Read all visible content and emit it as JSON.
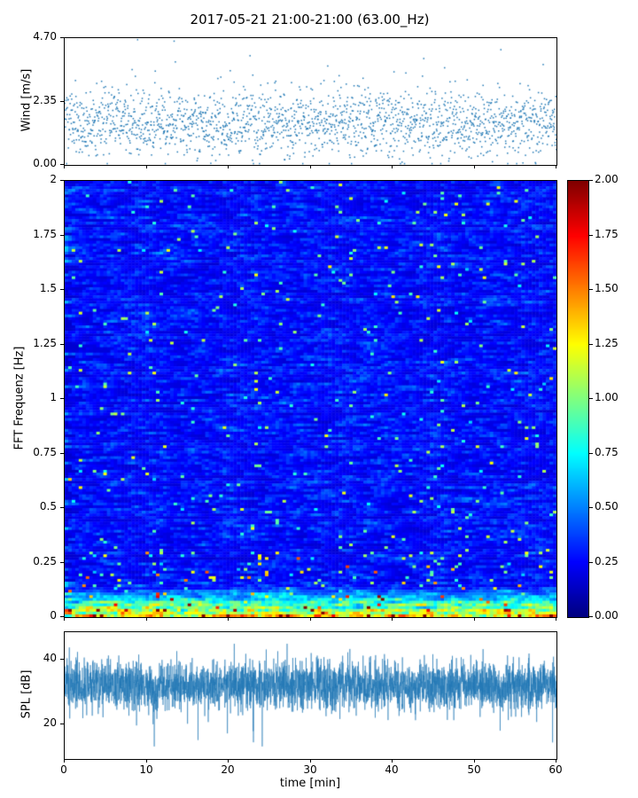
{
  "title": "2017-05-21 21:00-21:00 (63.00_Hz)",
  "xlabel": "time [min]",
  "xticks": {
    "values": [
      0,
      10,
      20,
      30,
      40,
      50,
      60
    ],
    "labels": [
      "0",
      "10",
      "20",
      "30",
      "40",
      "50",
      "60"
    ]
  },
  "accent_color": "#1f77b4",
  "chart_data": [
    {
      "type": "scatter",
      "name": "wind-speed",
      "ylabel": "Wind [m/s]",
      "xlim": [
        0,
        60
      ],
      "ylim": [
        0,
        4.7
      ],
      "yticks": {
        "values": [
          0,
          2.35,
          4.7
        ],
        "labels": [
          "0.00",
          "2.35",
          "4.70"
        ]
      },
      "marker_color": "#1f77b4",
      "data_summary": {
        "points": 1900,
        "y_mean": 1.55,
        "y_std": 0.62,
        "y_min": 0.05,
        "y_max": 4.7,
        "note": "dense noisy wind-speed scatter, mostly 0.5-2.8 m/s with sparse spikes up to 4.7"
      }
    },
    {
      "type": "heatmap",
      "name": "fft-spectrogram",
      "ylabel": "FFT Frequenz [Hz]",
      "xlim": [
        0,
        60
      ],
      "ylim": [
        0,
        2
      ],
      "yticks": {
        "values": [
          0,
          0.25,
          0.5,
          0.75,
          1,
          1.25,
          1.5,
          1.75,
          2
        ],
        "labels": [
          "0",
          "0.25",
          "0.5",
          "0.75",
          "1",
          "1.25",
          "1.5",
          "1.75",
          "2"
        ]
      },
      "colormap": "jet",
      "vmin": 0,
      "vmax": 2,
      "colorbar_ticks": {
        "values": [
          0,
          0.25,
          0.5,
          0.75,
          1,
          1.25,
          1.5,
          1.75,
          2
        ],
        "labels": [
          "0.00",
          "0.25",
          "0.50",
          "0.75",
          "1.00",
          "1.25",
          "1.50",
          "1.75",
          "2.00"
        ]
      },
      "data_summary": {
        "time_bins": 140,
        "freq_bins": 160,
        "background_value_range": [
          0.1,
          0.8
        ],
        "streak_values": [
          0.6,
          1.1
        ],
        "low_freq_band_hz": 0.14,
        "low_freq_value_range": [
          0.5,
          2.0
        ],
        "note": "mostly blue field with short horizontal cyan streaks; energetic red/orange/yellow band near 0 Hz"
      }
    },
    {
      "type": "line",
      "name": "spl",
      "ylabel": "SPL [dB]",
      "xlim": [
        0,
        60
      ],
      "ylim": [
        9.1,
        48.6
      ],
      "yticks": {
        "values": [
          20,
          40
        ],
        "labels": [
          "20",
          "40"
        ]
      },
      "line_color": "#1f77b4",
      "data_summary": {
        "points": 3800,
        "mean_db": 32,
        "std_db": 3.6,
        "min_db": 13,
        "max_db": 45,
        "note": "dense noisy SPL trace forming a band ~25-42 dB with occasional deep downward spikes"
      }
    }
  ]
}
